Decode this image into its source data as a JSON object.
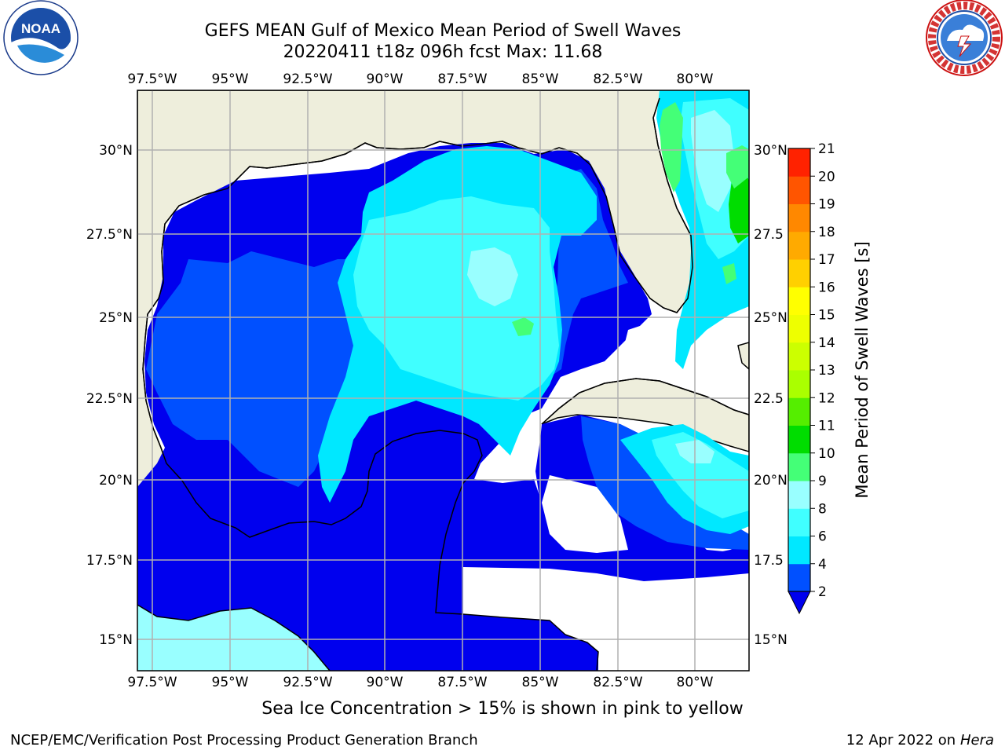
{
  "title": {
    "line1": "GEFS MEAN Gulf of Mexico Mean Period of Swell Waves",
    "line2": "20220411 t18z 096h fcst   Max: 11.68"
  },
  "logos": {
    "left": {
      "icon": "noaa-logo",
      "text": "NOAA",
      "ring_text": "NATIONAL OCEANIC AND ATMOSPHERIC ADMINISTRATION · U.S. DEPARTMENT OF COMMERCE"
    },
    "right": {
      "icon": "nws-logo",
      "ring_text": "NATIONAL WEATHER SERVICE"
    }
  },
  "map": {
    "lon_labels": [
      "97.5°W",
      "95°W",
      "92.5°W",
      "90°W",
      "87.5°W",
      "85°W",
      "82.5°W",
      "80°W"
    ],
    "lat_labels": [
      "30°N",
      "27.5°N",
      "25°N",
      "22.5°N",
      "20°N",
      "17.5°N",
      "15°N"
    ],
    "lat_labels_right": [
      "30°N",
      "27.5",
      "25°N",
      "22.5",
      "20°N",
      "17.5",
      "15°N"
    ],
    "land_color": "#eeeedc",
    "grid_color": "#b0b0b0"
  },
  "colorbar": {
    "label": "Mean Period of Swell Waves [s]",
    "ticks": [
      "2",
      "4",
      "6",
      "8",
      "9",
      "10",
      "11",
      "12",
      "13",
      "14",
      "15",
      "16",
      "17",
      "18",
      "19",
      "20",
      "21"
    ],
    "colors": [
      "#0050ff",
      "#00e8ff",
      "#40ffff",
      "#99ffff",
      "#44ff77",
      "#00dd00",
      "#55ee00",
      "#aaff00",
      "#ccff00",
      "#eeff00",
      "#ffff00",
      "#ffd000",
      "#ffaa00",
      "#ff8800",
      "#ff5500",
      "#ff2200"
    ],
    "under_color": "#0000ee"
  },
  "note": "Sea Ice Concentration > 15% is shown in pink to yellow",
  "footer": {
    "left": "NCEP/EMC/Verification Post Processing Product Generation Branch",
    "right_prefix": "12 Apr 2022 on ",
    "right_host": "Hera"
  }
}
